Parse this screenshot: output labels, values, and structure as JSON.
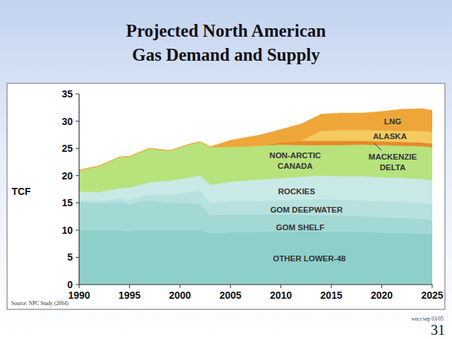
{
  "chart_data": {
    "type": "area",
    "stacked": true,
    "title": "Projected North American Gas Demand and Supply",
    "y_label": "TCF",
    "source": "Source: NPC Study (2004)",
    "footer": "wecr/sep 03/05",
    "page_number": "31",
    "grid": false,
    "x": [
      1990,
      1992,
      1994,
      1995,
      1996,
      1997,
      1999,
      2001,
      2002,
      2003,
      2005,
      2008,
      2010,
      2012,
      2014,
      2016,
      2018,
      2020,
      2022,
      2024,
      2025
    ],
    "xlim": [
      1990,
      2025
    ],
    "xticks": [
      1990,
      1995,
      2000,
      2005,
      2010,
      2015,
      2020,
      2025
    ],
    "ylim": [
      0,
      35
    ],
    "yticks": [
      0,
      5,
      10,
      15,
      20,
      25,
      30,
      35
    ],
    "series": [
      {
        "name": "OTHER LOWER-48",
        "color": "#8fcfca",
        "values": [
          10,
          10,
          10,
          9.8,
          10,
          10,
          10,
          10,
          10,
          9.5,
          9.6,
          9.7,
          9.8,
          9.8,
          9.8,
          9.8,
          9.7,
          9.6,
          9.5,
          9.4,
          9.3
        ]
      },
      {
        "name": "GOM SHELF",
        "color": "#a3d9d4",
        "values": [
          5.2,
          5.0,
          5.2,
          5.0,
          5.3,
          5.5,
          5.0,
          5.0,
          4.8,
          3.3,
          3.3,
          3.2,
          3.1,
          3.0,
          3.0,
          2.9,
          2.9,
          2.8,
          2.8,
          2.7,
          2.6
        ]
      },
      {
        "name": "GOM DEEPWATER",
        "color": "#b6e1de",
        "values": [
          0.3,
          0.4,
          0.6,
          0.8,
          0.8,
          1.0,
          1.5,
          2.0,
          2.5,
          2.2,
          2.4,
          2.5,
          2.6,
          2.8,
          2.9,
          2.9,
          2.9,
          2.9,
          2.9,
          2.9,
          2.9
        ]
      },
      {
        "name": "ROCKIES",
        "color": "#c8e9e6",
        "values": [
          1.5,
          1.6,
          1.9,
          2.2,
          2.2,
          2.3,
          2.6,
          2.7,
          2.7,
          3.3,
          3.6,
          3.9,
          4.0,
          4.2,
          4.3,
          4.3,
          4.4,
          4.4,
          4.4,
          4.4,
          4.4
        ]
      },
      {
        "name": "NON-ARCTIC CANADA",
        "color": "#b7e27c",
        "values": [
          4.0,
          4.8,
          5.7,
          5.7,
          6.0,
          6.2,
          5.5,
          6.1,
          6.2,
          7.0,
          6.4,
          6.2,
          6.2,
          5.8,
          5.6,
          5.7,
          5.8,
          5.9,
          5.9,
          6.0,
          6.0
        ]
      },
      {
        "name": "MACKENZIE DELTA",
        "color": "#e88a2a",
        "values": [
          0,
          0,
          0,
          0,
          0,
          0,
          0,
          0,
          0,
          0,
          0,
          0,
          0.5,
          0.8,
          0.8,
          0.8,
          0.7,
          0.7,
          0.7,
          0.7,
          0.7
        ]
      },
      {
        "name": "ALASKA",
        "color": "#f3cb5e",
        "values": [
          0,
          0,
          0,
          0,
          0,
          0,
          0,
          0,
          0,
          0,
          0,
          0,
          0,
          0,
          1.8,
          2.0,
          2.0,
          2.0,
          2.0,
          2.1,
          2.1
        ]
      },
      {
        "name": "LNG",
        "color": "#eea638",
        "values": [
          0,
          0,
          0,
          0,
          0,
          0,
          0,
          0,
          0,
          0,
          1.2,
          2.0,
          2.3,
          3.1,
          3.1,
          3.1,
          3.1,
          3.5,
          4.0,
          4.1,
          4.0
        ]
      }
    ]
  }
}
